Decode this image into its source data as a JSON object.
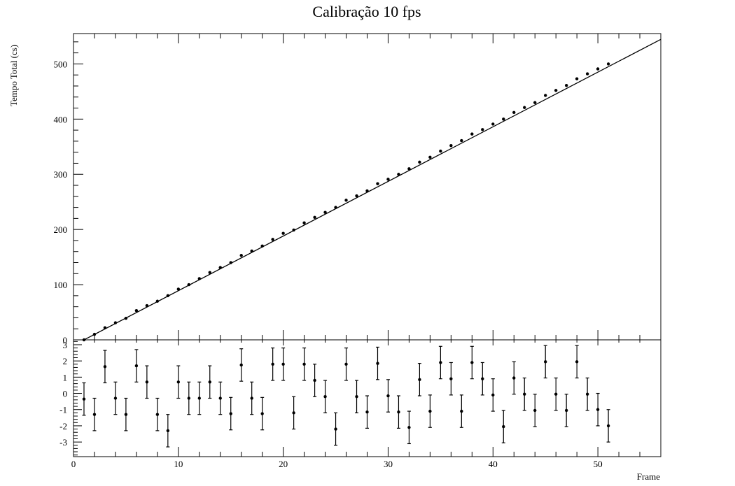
{
  "chart_data": [
    {
      "type": "scatter",
      "title": "Calibração 10 fps",
      "ylabel": "Tempo Total (cs)",
      "xlabel": "",
      "xlim": [
        0,
        56
      ],
      "ylim": [
        0,
        555
      ],
      "yticks": [
        0,
        100,
        200,
        300,
        400,
        500
      ],
      "fit_line": {
        "slope": 9.9,
        "intercept": -9.9
      },
      "series": [
        {
          "x": [
            1,
            2,
            3,
            4,
            5,
            6,
            7,
            8,
            9,
            10,
            11,
            12,
            13,
            14,
            15,
            16,
            17,
            18,
            19,
            20,
            21,
            22,
            23,
            24,
            25,
            26,
            27,
            28,
            29,
            30,
            31,
            32,
            33,
            34,
            35,
            36,
            37,
            38,
            39,
            40,
            41,
            42,
            43,
            44,
            45,
            46,
            47,
            48,
            49,
            50,
            51
          ],
          "y": [
            0,
            10,
            22,
            31,
            39,
            53,
            62,
            70,
            80,
            92,
            100,
            111,
            122,
            131,
            140,
            153,
            161,
            170,
            182,
            193,
            199,
            212,
            222,
            231,
            240,
            253,
            261,
            270,
            283,
            291,
            300,
            310,
            322,
            331,
            342,
            352,
            361,
            373,
            381,
            391,
            400,
            412,
            421,
            430,
            443,
            452,
            461,
            473,
            482,
            491,
            500
          ]
        }
      ]
    },
    {
      "type": "scatter",
      "title": "",
      "xlabel": "Frame",
      "ylabel": "",
      "xlim": [
        0,
        56
      ],
      "ylim": [
        -3.9,
        3.3
      ],
      "xticks": [
        0,
        10,
        20,
        30,
        40,
        50
      ],
      "yticks": [
        -3,
        -2,
        -1,
        0,
        1,
        2,
        3
      ],
      "error": 1,
      "series": [
        {
          "x": [
            1,
            2,
            3,
            4,
            5,
            6,
            7,
            8,
            9,
            10,
            11,
            12,
            13,
            14,
            15,
            16,
            17,
            18,
            19,
            20,
            21,
            22,
            23,
            24,
            25,
            26,
            27,
            28,
            29,
            30,
            31,
            32,
            33,
            34,
            35,
            36,
            37,
            38,
            39,
            40,
            41,
            42,
            43,
            44,
            45,
            46,
            47,
            48,
            49,
            50,
            51
          ],
          "y": [
            -0.35,
            -1.3,
            1.65,
            -0.3,
            -1.3,
            1.7,
            0.7,
            -1.3,
            -2.3,
            0.7,
            -0.3,
            -0.3,
            0.7,
            -0.3,
            -1.25,
            1.75,
            -0.3,
            -1.25,
            1.8,
            1.8,
            -1.2,
            1.8,
            0.8,
            -0.2,
            -2.2,
            1.8,
            -0.2,
            -1.15,
            1.85,
            -0.15,
            -1.15,
            -2.1,
            0.85,
            -1.1,
            1.9,
            0.9,
            -1.1,
            1.9,
            0.9,
            -0.1,
            -2.05,
            0.95,
            -0.05,
            -1.05,
            1.95,
            -0.05,
            -1.05,
            1.95,
            -0.05,
            -1.0,
            -2.0
          ]
        }
      ]
    }
  ]
}
